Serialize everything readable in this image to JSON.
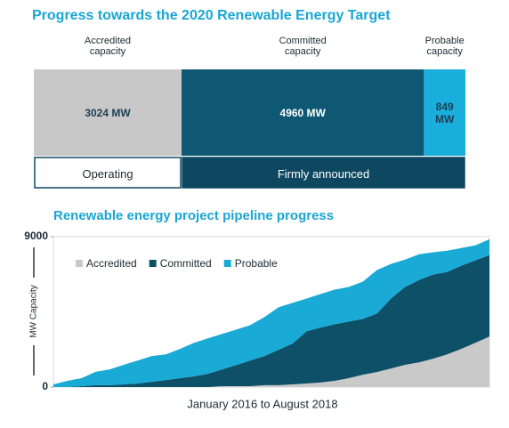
{
  "chart_data": [
    {
      "type": "bar",
      "orientation": "horizontal",
      "stacked": true,
      "title": "Progress towards the 2020 Renewable Energy Target",
      "series": [
        {
          "name": "Accredited capacity",
          "color": "#c8c8c8",
          "text_color": "#1c3f55",
          "values": [
            3024
          ],
          "value_labels": [
            "3024 MW"
          ]
        },
        {
          "name": "Committed capacity",
          "color": "#0e5873",
          "text_color": "#ffffff",
          "values": [
            4960
          ],
          "value_labels": [
            "4960 MW"
          ]
        },
        {
          "name": "Probable capacity",
          "color": "#19aedb",
          "text_color": "#1c3f55",
          "values": [
            849
          ],
          "value_labels": [
            "849 MW"
          ]
        }
      ],
      "groups": [
        {
          "label": "Operating",
          "color": "#ffffff",
          "text_color": "#1c2b33"
        },
        {
          "label": "Firmly announced",
          "color": "#0e4860",
          "text_color": "#ffffff"
        }
      ]
    },
    {
      "type": "area",
      "stacked": true,
      "title": "Renewable energy project pipeline progress",
      "xlabel": "January 2016 to August 2018",
      "ylabel": "MW Capacity",
      "categories": [
        null,
        null,
        null,
        null,
        null,
        null,
        null,
        null,
        null,
        null,
        null,
        null,
        null,
        null,
        null,
        null,
        null,
        null,
        null,
        null,
        null,
        null,
        null,
        null,
        null,
        null,
        null,
        null,
        null,
        null,
        null,
        null
      ],
      "ylim": [
        0,
        9000
      ],
      "yticks": [
        0,
        9000
      ],
      "legend": "upper left",
      "series": [
        {
          "name": "Accredited",
          "color": "#c9c9c9",
          "values": [
            0,
            0,
            0,
            0,
            0,
            0,
            0,
            0,
            0,
            0,
            0,
            0,
            50,
            50,
            50,
            110,
            110,
            160,
            210,
            270,
            370,
            530,
            740,
            900,
            1110,
            1330,
            1480,
            1700,
            1960,
            2280,
            2650,
            3020
          ]
        },
        {
          "name": "Committed",
          "color": "#0d5068",
          "values": [
            0,
            0,
            50,
            110,
            110,
            160,
            210,
            320,
            420,
            530,
            640,
            800,
            1010,
            1270,
            1540,
            1750,
            2120,
            2440,
            3130,
            3290,
            3390,
            3390,
            3340,
            3500,
            4190,
            4660,
            4930,
            5040,
            4930,
            4980,
            4930,
            4880
          ]
        },
        {
          "name": "Probable",
          "color": "#1aaad6",
          "values": [
            160,
            370,
            480,
            800,
            950,
            1170,
            1380,
            1540,
            1540,
            1750,
            2010,
            2120,
            2120,
            2120,
            2120,
            2330,
            2540,
            2440,
            1960,
            2010,
            2070,
            2070,
            2230,
            2600,
            2070,
            1640,
            1540,
            1330,
            1270,
            1060,
            900,
            950
          ]
        }
      ]
    }
  ]
}
